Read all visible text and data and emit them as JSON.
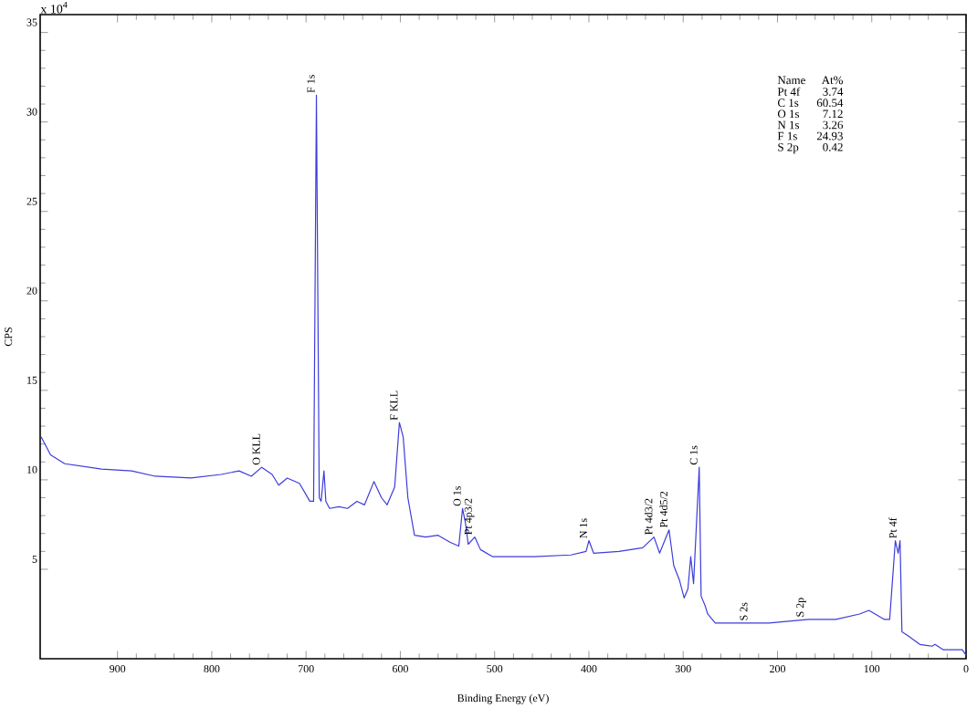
{
  "chart_data": {
    "type": "line",
    "xlabel": "Binding Energy (eV)",
    "ylabel": "CPS",
    "x": [
      981,
      971,
      956,
      917,
      885,
      860,
      822,
      790,
      771,
      758,
      747,
      736,
      729,
      720,
      707,
      696,
      692,
      689,
      686,
      684,
      681,
      679,
      675,
      665,
      656,
      646,
      638,
      628,
      620,
      614,
      606,
      601,
      597,
      592,
      585,
      573,
      560,
      547,
      538,
      534,
      531,
      528,
      521,
      515,
      502,
      496,
      458,
      419,
      403,
      400,
      395,
      368,
      343,
      331,
      325,
      315,
      310,
      304,
      299,
      295,
      292,
      289,
      283,
      281,
      277,
      274,
      266,
      241,
      209,
      167,
      138,
      113,
      103,
      87,
      81,
      75,
      72,
      70,
      68,
      62,
      49,
      36,
      33,
      24,
      4,
      0
    ],
    "series": [
      {
        "color": "#3c3cdc",
        "values": [
          12.4,
          11.4,
          10.9,
          10.6,
          10.5,
          10.2,
          10.1,
          10.3,
          10.5,
          10.2,
          10.7,
          10.3,
          9.7,
          10.1,
          9.8,
          8.8,
          8.8,
          31.5,
          9.0,
          8.8,
          10.5,
          8.8,
          8.4,
          8.5,
          8.4,
          8.8,
          8.6,
          9.9,
          9.0,
          8.6,
          9.6,
          13.2,
          12.4,
          9.0,
          6.9,
          6.8,
          6.9,
          6.5,
          6.3,
          8.4,
          7.6,
          6.4,
          6.8,
          6.1,
          5.7,
          5.7,
          5.7,
          5.8,
          6.0,
          6.6,
          5.9,
          6.0,
          6.2,
          6.8,
          5.9,
          7.2,
          5.2,
          4.4,
          3.4,
          3.9,
          5.7,
          4.2,
          10.7,
          3.5,
          3.0,
          2.5,
          2.0,
          2.0,
          2.0,
          2.2,
          2.2,
          2.5,
          2.7,
          2.2,
          2.2,
          6.6,
          5.9,
          6.6,
          1.5,
          1.3,
          0.8,
          0.7,
          0.8,
          0.5,
          0.5,
          0.2
        ]
      }
    ],
    "xlim": [
      982,
      0
    ],
    "xticks": [
      900,
      800,
      700,
      600,
      500,
      400,
      300,
      200,
      100,
      0
    ],
    "ylim": [
      0,
      36
    ],
    "yticks": [
      5,
      10,
      15,
      20,
      25,
      30,
      35
    ],
    "grid": false,
    "marker": "none",
    "line_style": "solid",
    "annotations": [
      "x 10$^{4}$",
      "Name",
      "At%",
      "Pt 4f",
      "3.74",
      "C 1s",
      "60.54",
      "O 1s",
      "7.12",
      "N 1s",
      "3.26",
      "F 1s",
      "24.93",
      "S 2p",
      "0.42",
      {
        "text": "F 1s",
        "x": 689,
        "y": 31.5
      },
      {
        "text": "O KLL",
        "x": 747,
        "y": 10.7
      },
      {
        "text": "F KLL",
        "x": 601,
        "y": 13.2
      },
      {
        "text": "O 1s",
        "x": 534,
        "y": 8.4
      },
      {
        "text": "Pt 4p3/2",
        "x": 521,
        "y": 6.8
      },
      {
        "text": "N 1s",
        "x": 400,
        "y": 6.6
      },
      {
        "text": "Pt 4d3/2",
        "x": 331,
        "y": 6.8
      },
      {
        "text": "Pt 4d5/2",
        "x": 315,
        "y": 7.2
      },
      {
        "text": "C 1s",
        "x": 283,
        "y": 10.7
      },
      {
        "text": "S 2s",
        "x": 230,
        "y": 2.0
      },
      {
        "text": "S 2p",
        "x": 169,
        "y": 2.2
      },
      {
        "text": "Pt 4f",
        "x": 72,
        "y": 6.6
      }
    ]
  }
}
